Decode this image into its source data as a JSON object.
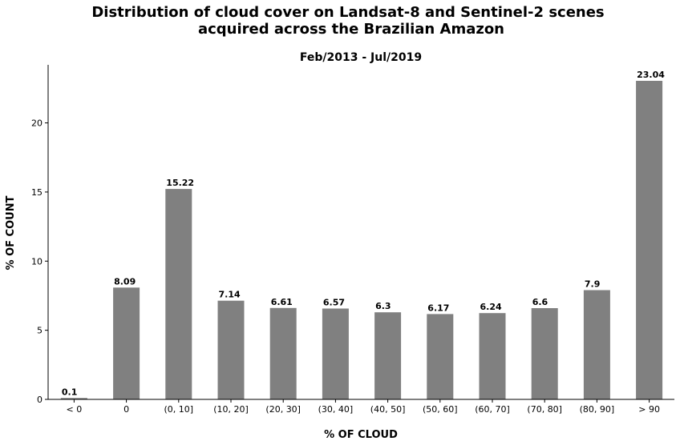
{
  "chart_data": {
    "type": "bar",
    "title": "Distribution of cloud cover on Landsat-8 and Sentinel-2 scenes acquired across the Brazilian Amazon",
    "title_lines": [
      "Distribution of cloud cover on Landsat-8 and Sentinel-2 scenes",
      "acquired across the Brazilian Amazon"
    ],
    "subtitle": "Feb/2013 - Jul/2019",
    "xlabel": "% OF CLOUD",
    "ylabel": "% OF COUNT",
    "categories": [
      "< 0",
      "0",
      "(0, 10]",
      "(10, 20]",
      "(20, 30]",
      "(30, 40]",
      "(40, 50]",
      "(50, 60]",
      "(60, 70]",
      "(70, 80]",
      "(80, 90]",
      "> 90"
    ],
    "values": [
      0.1,
      8.09,
      15.22,
      7.14,
      6.61,
      6.57,
      6.3,
      6.17,
      6.24,
      6.6,
      7.9,
      23.04
    ],
    "value_labels": [
      "0.1",
      "8.09",
      "15.22",
      "7.14",
      "6.61",
      "6.57",
      "6.3",
      "6.17",
      "6.24",
      "6.6",
      "7.9",
      "23.04"
    ],
    "yticks": [
      0,
      5,
      10,
      15,
      20
    ],
    "ytick_labels": [
      "0",
      "5",
      "10",
      "15",
      "20"
    ],
    "ylim": [
      0,
      24.2
    ],
    "bar_color": "#808080",
    "grid": false,
    "legend": "none"
  }
}
